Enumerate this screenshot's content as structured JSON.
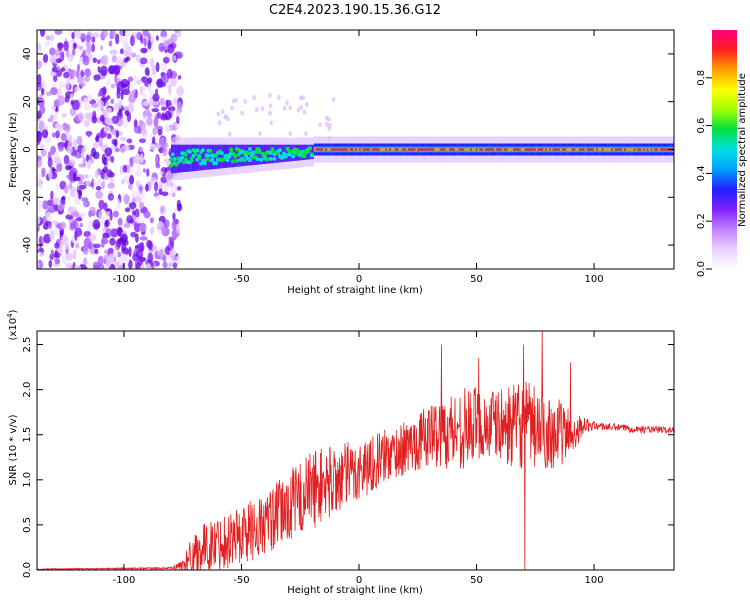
{
  "title": "C2E4.2023.190.15.36.G12",
  "colors": {
    "snr_line": "#e02020",
    "axis": "#000000",
    "colorbar_stops": [
      "#ffffff",
      "#e8d0ff",
      "#c080ff",
      "#8020ff",
      "#2020ff",
      "#00a0ff",
      "#00e0e0",
      "#00e040",
      "#a0ff00",
      "#ffff00",
      "#ffa000",
      "#ff2020",
      "#ff0080"
    ]
  },
  "chart_data": [
    {
      "type": "heatmap",
      "name": "spectrogram",
      "xlabel": "Height of straight line (km)",
      "ylabel": "Frequency (Hz)",
      "xlim": [
        -137,
        134
      ],
      "ylim": [
        -50,
        50
      ],
      "xticks": [
        -100,
        -50,
        0,
        50,
        100
      ],
      "yticks": [
        -40,
        -20,
        0,
        20,
        40
      ],
      "colorbar": {
        "label": "Normalized spectral amplitude",
        "range": [
          0.0,
          1.0
        ],
        "ticks": [
          "0.0",
          "0.2",
          "0.4",
          "0.6",
          "0.8"
        ]
      },
      "description_ridge_center_hz": 0,
      "ridge_start_km": -80
    },
    {
      "type": "line",
      "name": "snr",
      "xlabel": "Height of straight line (km)",
      "ylabel": "SNR (10 * v/v)",
      "multiplier": "(x10",
      "multiplier_exp": "4",
      "xlim": [
        -137,
        134
      ],
      "ylim": [
        0.0,
        2.65
      ],
      "xticks": [
        -100,
        -50,
        0,
        50,
        100
      ],
      "yticks": [
        "0.0",
        "0.5",
        "1.0",
        "1.5",
        "2.0",
        "2.5"
      ],
      "envelope_x": [
        -137,
        -80,
        -75,
        -70,
        -60,
        -50,
        -40,
        -30,
        -20,
        -10,
        0,
        10,
        20,
        30,
        40,
        50,
        60,
        70,
        80,
        90,
        95,
        100,
        110,
        120,
        134
      ],
      "envelope_y": [
        0.01,
        0.02,
        0.05,
        0.2,
        0.3,
        0.4,
        0.5,
        0.7,
        0.9,
        1.0,
        1.1,
        1.25,
        1.35,
        1.5,
        1.55,
        1.6,
        1.6,
        1.6,
        1.55,
        1.5,
        1.6,
        1.6,
        1.58,
        1.56,
        1.55
      ],
      "noise_amp": [
        0.005,
        0.01,
        0.08,
        0.25,
        0.3,
        0.35,
        0.35,
        0.4,
        0.45,
        0.4,
        0.35,
        0.3,
        0.3,
        0.35,
        0.45,
        0.45,
        0.4,
        0.5,
        0.45,
        0.3,
        0.1,
        0.05,
        0.04,
        0.04,
        0.04
      ],
      "spikes": [
        {
          "x": 35,
          "y": 2.5
        },
        {
          "x": 51,
          "y": 2.35
        },
        {
          "x": 70,
          "y": 2.5
        },
        {
          "x": 70.5,
          "y": 0.0
        },
        {
          "x": 78,
          "y": 2.65
        },
        {
          "x": 90,
          "y": 2.3
        }
      ]
    }
  ]
}
